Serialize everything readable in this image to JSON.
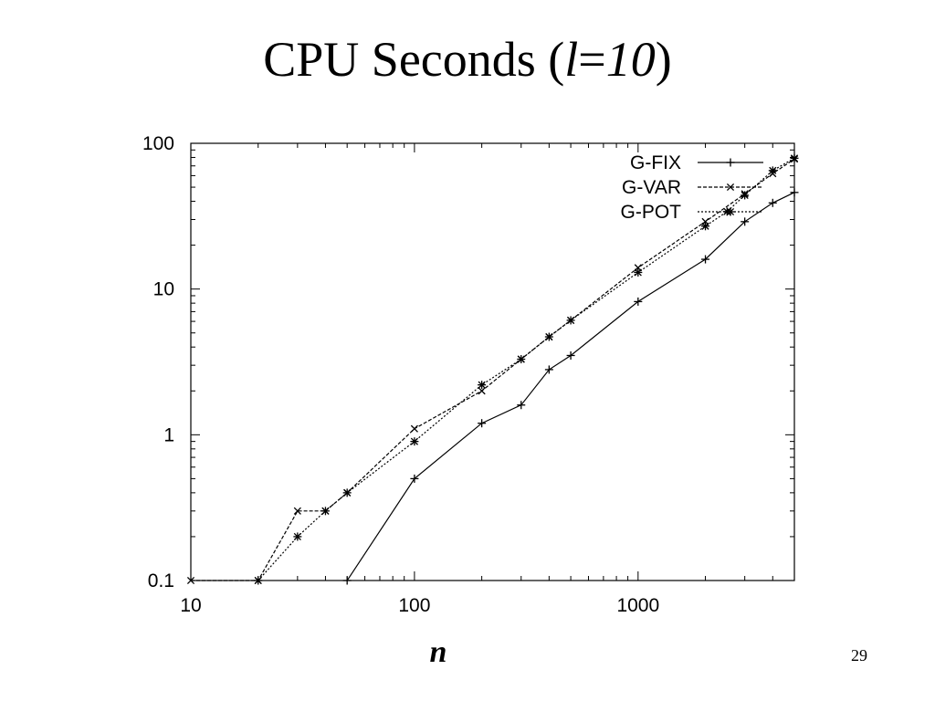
{
  "slide": {
    "title_prefix": "CPU Seconds (",
    "title_var": "l",
    "title_eq": "=",
    "title_val": "10",
    "title_suffix": ")",
    "page_number": "29"
  },
  "chart_data": {
    "type": "line",
    "xlabel": "n",
    "ylabel": "",
    "x_scale": "log",
    "y_scale": "log",
    "xlim": [
      10,
      5000
    ],
    "ylim": [
      0.1,
      100
    ],
    "x_ticks": [
      {
        "value": 10,
        "label": "10"
      },
      {
        "value": 100,
        "label": "100"
      },
      {
        "value": 1000,
        "label": "1000"
      }
    ],
    "y_ticks": [
      {
        "value": 0.1,
        "label": "0.1"
      },
      {
        "value": 1,
        "label": "1"
      },
      {
        "value": 10,
        "label": "10"
      },
      {
        "value": 100,
        "label": "100"
      }
    ],
    "grid": false,
    "legend_position": "top-right",
    "series": [
      {
        "name": "G-FIX",
        "marker": "plus",
        "dash": "solid",
        "x": [
          50,
          100,
          200,
          300,
          400,
          500,
          1000,
          2000,
          3000,
          4000,
          5000
        ],
        "y": [
          0.1,
          0.5,
          1.2,
          1.6,
          2.8,
          3.5,
          8.2,
          16,
          29,
          39,
          46
        ]
      },
      {
        "name": "G-VAR",
        "marker": "cross",
        "dash": "dashed",
        "x": [
          10,
          20,
          30,
          40,
          50,
          100,
          200,
          300,
          400,
          500,
          1000,
          2000,
          3000,
          4000,
          5000
        ],
        "y": [
          0.1,
          0.1,
          0.3,
          0.3,
          0.4,
          1.1,
          2.0,
          3.3,
          4.7,
          6.1,
          14,
          29,
          45,
          62,
          78
        ]
      },
      {
        "name": "G-POT",
        "marker": "star",
        "dash": "dotted",
        "x": [
          20,
          30,
          40,
          50,
          100,
          200,
          300,
          400,
          500,
          1000,
          2000,
          2500,
          3000,
          4000,
          5000
        ],
        "y": [
          0.1,
          0.2,
          0.3,
          0.4,
          0.9,
          2.2,
          3.3,
          4.7,
          6.1,
          13,
          27,
          34,
          44,
          65,
          79
        ]
      }
    ]
  }
}
